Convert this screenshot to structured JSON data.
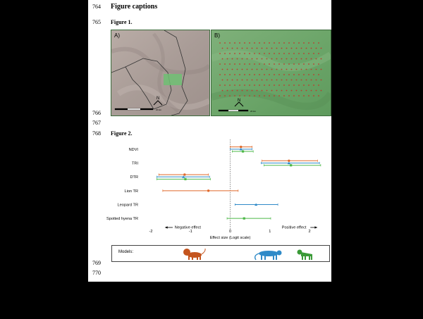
{
  "line_numbers": {
    "l764": "764",
    "l765": "765",
    "l766": "766",
    "l767": "767",
    "l768": "768",
    "l769": "769",
    "l770": "770"
  },
  "section_heading": "Figure captions",
  "figure1": {
    "heading": "Figure 1.",
    "panel_a_label": "A)",
    "panel_b_label": "B)",
    "north_symbol": "N",
    "scale_unit_a": "20 km",
    "scale_unit_b": "20 km"
  },
  "figure2": {
    "heading": "Figure 2.",
    "negative_effect_label": "Negative effect",
    "positive_effect_label": "Positive effect",
    "models_label": "Models:",
    "model_icons": [
      "lion-icon",
      "leopard-icon",
      "hyena-icon"
    ],
    "colors": {
      "lion": "#e0692a",
      "leopard": "#2f8ac8",
      "hyena": "#4cb848"
    }
  },
  "chart_data": {
    "type": "scatter",
    "title": "",
    "xlabel": "Effect size (Logit scale)",
    "ylabel": "",
    "xlim": [
      -2,
      2.3
    ],
    "xticks": [
      -2,
      -1,
      0,
      1,
      2
    ],
    "grid": false,
    "reference_line_x": 0,
    "categories": [
      "NDVI",
      "TRI",
      "DTR",
      "Lion TR",
      "Leopard TR",
      "Spotted hyena TR"
    ],
    "series": [
      {
        "name": "lion",
        "color": "#e0692a",
        "marker": "circle",
        "points": [
          {
            "category": "NDVI",
            "est": 0.27,
            "lo": 0.0,
            "hi": 0.55
          },
          {
            "category": "TRI",
            "est": 1.48,
            "lo": 0.8,
            "hi": 2.2
          },
          {
            "category": "DTR",
            "est": -1.15,
            "lo": -1.8,
            "hi": -0.55
          },
          {
            "category": "Lion TR",
            "est": -0.55,
            "lo": -1.7,
            "hi": 0.2
          }
        ]
      },
      {
        "name": "leopard",
        "color": "#2f8ac8",
        "marker": "triangle",
        "points": [
          {
            "category": "NDVI",
            "est": 0.27,
            "lo": 0.0,
            "hi": 0.55
          },
          {
            "category": "TRI",
            "est": 1.48,
            "lo": 0.78,
            "hi": 2.25
          },
          {
            "category": "DTR",
            "est": -1.18,
            "lo": -1.85,
            "hi": -0.52
          },
          {
            "category": "Leopard TR",
            "est": 0.65,
            "lo": 0.12,
            "hi": 1.2
          }
        ]
      },
      {
        "name": "hyena",
        "color": "#4cb848",
        "marker": "square",
        "points": [
          {
            "category": "NDVI",
            "est": 0.32,
            "lo": 0.05,
            "hi": 0.58
          },
          {
            "category": "TRI",
            "est": 1.53,
            "lo": 0.85,
            "hi": 2.28
          },
          {
            "category": "DTR",
            "est": -1.13,
            "lo": -1.85,
            "hi": -0.5
          },
          {
            "category": "Spotted hyena TR",
            "est": 0.35,
            "lo": -0.08,
            "hi": 1.02
          }
        ]
      }
    ]
  }
}
